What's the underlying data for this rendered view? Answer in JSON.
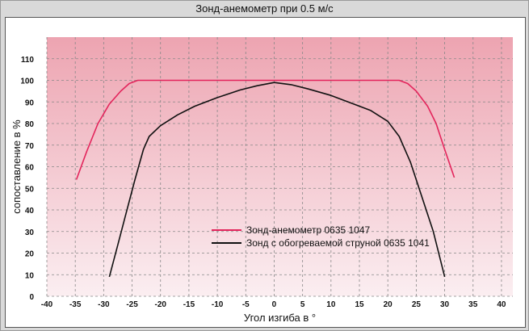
{
  "chart_data": {
    "type": "line",
    "title": "Зонд-анемометр при 0.5 м/с",
    "xlabel": "Угол изгиба в °",
    "ylabel": "сопоставление в %",
    "xlim": [
      -40,
      42
    ],
    "ylim": [
      0,
      120
    ],
    "x_ticks": [
      -40,
      -35,
      -30,
      -25,
      -20,
      -15,
      -10,
      -5,
      0,
      5,
      10,
      15,
      20,
      25,
      30,
      35,
      40
    ],
    "y_ticks": [
      0,
      10,
      20,
      30,
      40,
      50,
      60,
      70,
      80,
      90,
      100,
      110
    ],
    "grid": true,
    "legend_position": "lower-center",
    "background_gradient": [
      "#eda4b1",
      "#fbeef1"
    ],
    "series": [
      {
        "name": "Зонд-анемометр 0635 1047",
        "color": "#e3255c",
        "points": [
          [
            -34.8,
            54
          ],
          [
            -33,
            67
          ],
          [
            -31,
            80
          ],
          [
            -29,
            89
          ],
          [
            -27,
            95
          ],
          [
            -25.5,
            98.5
          ],
          [
            -24,
            100
          ],
          [
            0,
            100
          ],
          [
            22,
            100
          ],
          [
            23.5,
            98.5
          ],
          [
            25,
            95
          ],
          [
            27,
            88
          ],
          [
            28.5,
            80
          ],
          [
            30,
            68
          ],
          [
            31.7,
            55
          ]
        ]
      },
      {
        "name": "Зонд с обогреваемой струной 0635 1041",
        "color": "#111111",
        "points": [
          [
            -29,
            9
          ],
          [
            -27.5,
            24
          ],
          [
            -26,
            39
          ],
          [
            -24.5,
            54
          ],
          [
            -23,
            68
          ],
          [
            -22,
            74
          ],
          [
            -20,
            79
          ],
          [
            -17,
            84
          ],
          [
            -14,
            88
          ],
          [
            -10,
            92
          ],
          [
            -6,
            95.5
          ],
          [
            -3,
            97.5
          ],
          [
            0,
            99
          ],
          [
            3,
            98
          ],
          [
            6,
            96
          ],
          [
            10,
            93
          ],
          [
            14,
            89
          ],
          [
            17,
            86
          ],
          [
            20,
            81
          ],
          [
            22,
            74
          ],
          [
            24,
            62
          ],
          [
            26,
            46
          ],
          [
            28,
            30
          ],
          [
            30,
            9
          ]
        ]
      }
    ]
  }
}
